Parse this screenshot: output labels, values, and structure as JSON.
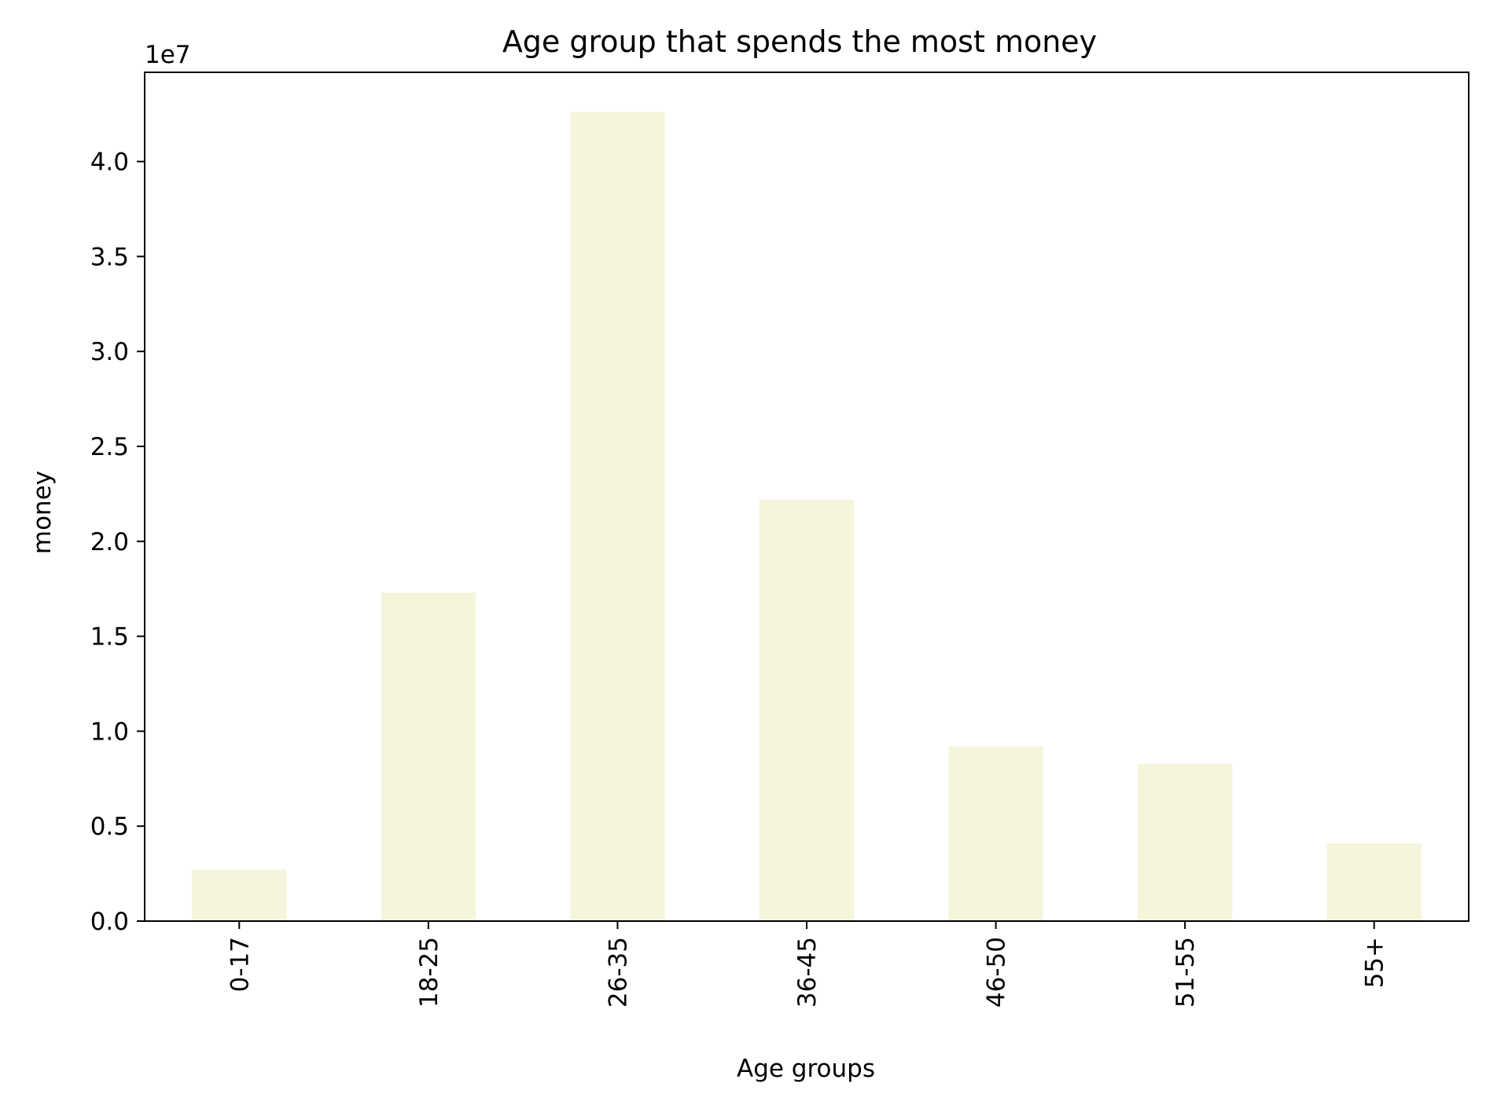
{
  "chart_data": {
    "type": "bar",
    "title": "Age group that spends the most money",
    "xlabel": "Age groups",
    "ylabel": "money",
    "y_offset_label": "1e7",
    "y_scale": 10000000,
    "categories": [
      "0-17",
      "18-25",
      "26-35",
      "36-45",
      "46-50",
      "51-55",
      "55+"
    ],
    "values": [
      2700000,
      17300000,
      42600000,
      22200000,
      9200000,
      8300000,
      4100000
    ],
    "ylim": [
      0,
      44700000
    ],
    "yticks": [
      0,
      5000000,
      10000000,
      15000000,
      20000000,
      25000000,
      30000000,
      35000000,
      40000000
    ],
    "ytick_labels": [
      "0.0",
      "0.5",
      "1.0",
      "1.5",
      "2.0",
      "2.5",
      "3.0",
      "3.5",
      "4.0"
    ],
    "bar_color": "#f5f5dc",
    "grid": false,
    "legend": "none"
  }
}
